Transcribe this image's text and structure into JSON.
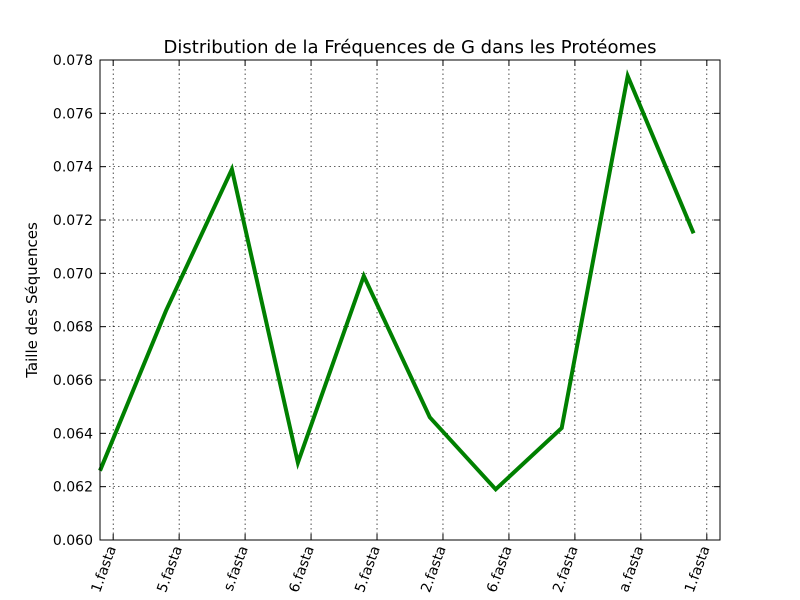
{
  "chart_data": {
    "type": "line",
    "title": "Distribution de la Fréquences de G dans les Protéomes",
    "xlabel": "",
    "ylabel": "Taille des Séquences",
    "ylim": [
      0.06,
      0.078
    ],
    "yticks": [
      "0.060",
      "0.062",
      "0.064",
      "0.066",
      "0.068",
      "0.070",
      "0.072",
      "0.074",
      "0.076",
      "0.078"
    ],
    "xlim": [
      -0.2,
      9.2
    ],
    "tick_positions": [
      0,
      1,
      2,
      3,
      4,
      5,
      6,
      7,
      8,
      9
    ],
    "xtick_labels": [
      "1.fasta",
      "5.fasta",
      "s.fasta",
      "6.fasta",
      "5.fasta",
      "2.fasta",
      "6.fasta",
      "2.fasta",
      "a.fasta",
      "1.fasta"
    ],
    "grid": true,
    "series": [
      {
        "color": "#008000",
        "x": [
          -0.2,
          0.8,
          1.8,
          2.8,
          3.8,
          4.8,
          5.8,
          6.8,
          7.8,
          8.8
        ],
        "values": [
          0.0626,
          0.0686,
          0.0739,
          0.0629,
          0.0699,
          0.0646,
          0.0619,
          0.0642,
          0.0774,
          0.0715
        ]
      }
    ]
  }
}
